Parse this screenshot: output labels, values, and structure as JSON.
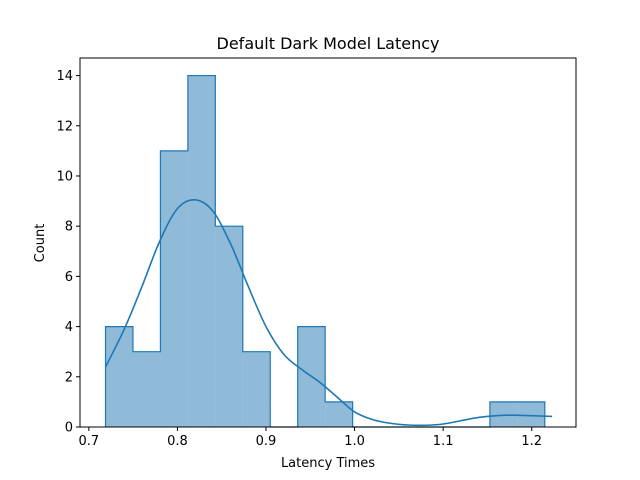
{
  "chart_data": {
    "type": "bar",
    "subtype": "histogram-step-with-kde",
    "title": "Default Dark Model Latency",
    "xlabel": "Latency Times",
    "ylabel": "Count",
    "xlim": [
      0.69,
      1.25
    ],
    "ylim": [
      0,
      14.7
    ],
    "x_ticks": [
      0.7,
      0.8,
      0.9,
      1.0,
      1.1,
      1.2
    ],
    "x_tick_labels": [
      "0.7",
      "0.8",
      "0.9",
      "1.0",
      "1.1",
      "1.2"
    ],
    "y_ticks": [
      0,
      2,
      4,
      6,
      8,
      10,
      12,
      14
    ],
    "y_tick_labels": [
      "0",
      "2",
      "4",
      "6",
      "8",
      "10",
      "12",
      "14"
    ],
    "grid": false,
    "legend": "none",
    "bins": [
      {
        "x0": 0.7188,
        "x1": 0.7498,
        "count": 4
      },
      {
        "x0": 0.7498,
        "x1": 0.7808,
        "count": 3
      },
      {
        "x0": 0.7808,
        "x1": 0.8118,
        "count": 11
      },
      {
        "x0": 0.8118,
        "x1": 0.8428,
        "count": 14
      },
      {
        "x0": 0.8428,
        "x1": 0.8738,
        "count": 8
      },
      {
        "x0": 0.8738,
        "x1": 0.9048,
        "count": 3
      },
      {
        "x0": 0.9048,
        "x1": 0.9358,
        "count": 0
      },
      {
        "x0": 0.9358,
        "x1": 0.9668,
        "count": 4
      },
      {
        "x0": 0.9668,
        "x1": 0.9978,
        "count": 1
      },
      {
        "x0": 0.9978,
        "x1": 1.0288,
        "count": 0
      },
      {
        "x0": 1.0288,
        "x1": 1.0598,
        "count": 0
      },
      {
        "x0": 1.0598,
        "x1": 1.0908,
        "count": 0
      },
      {
        "x0": 1.0908,
        "x1": 1.1218,
        "count": 0
      },
      {
        "x0": 1.1218,
        "x1": 1.1528,
        "count": 0
      },
      {
        "x0": 1.1528,
        "x1": 1.1838,
        "count": 1
      },
      {
        "x0": 1.1838,
        "x1": 1.2148,
        "count": 1
      }
    ],
    "kde": {
      "x": [
        0.719,
        0.74,
        0.76,
        0.78,
        0.8,
        0.82,
        0.84,
        0.86,
        0.88,
        0.9,
        0.92,
        0.94,
        0.96,
        0.98,
        1.0,
        1.02,
        1.04,
        1.06,
        1.08,
        1.1,
        1.12,
        1.14,
        1.16,
        1.18,
        1.2,
        1.223
      ],
      "y": [
        2.4,
        3.9,
        5.6,
        7.4,
        8.7,
        9.05,
        8.6,
        7.3,
        5.6,
        4.0,
        2.9,
        2.3,
        1.8,
        1.2,
        0.6,
        0.3,
        0.15,
        0.08,
        0.07,
        0.12,
        0.25,
        0.38,
        0.45,
        0.47,
        0.45,
        0.42
      ]
    },
    "colors": {
      "fill": "#1f77b4",
      "fill_opacity": 0.5,
      "edge": "#1f77b4",
      "kde": "#1f77b4"
    }
  }
}
